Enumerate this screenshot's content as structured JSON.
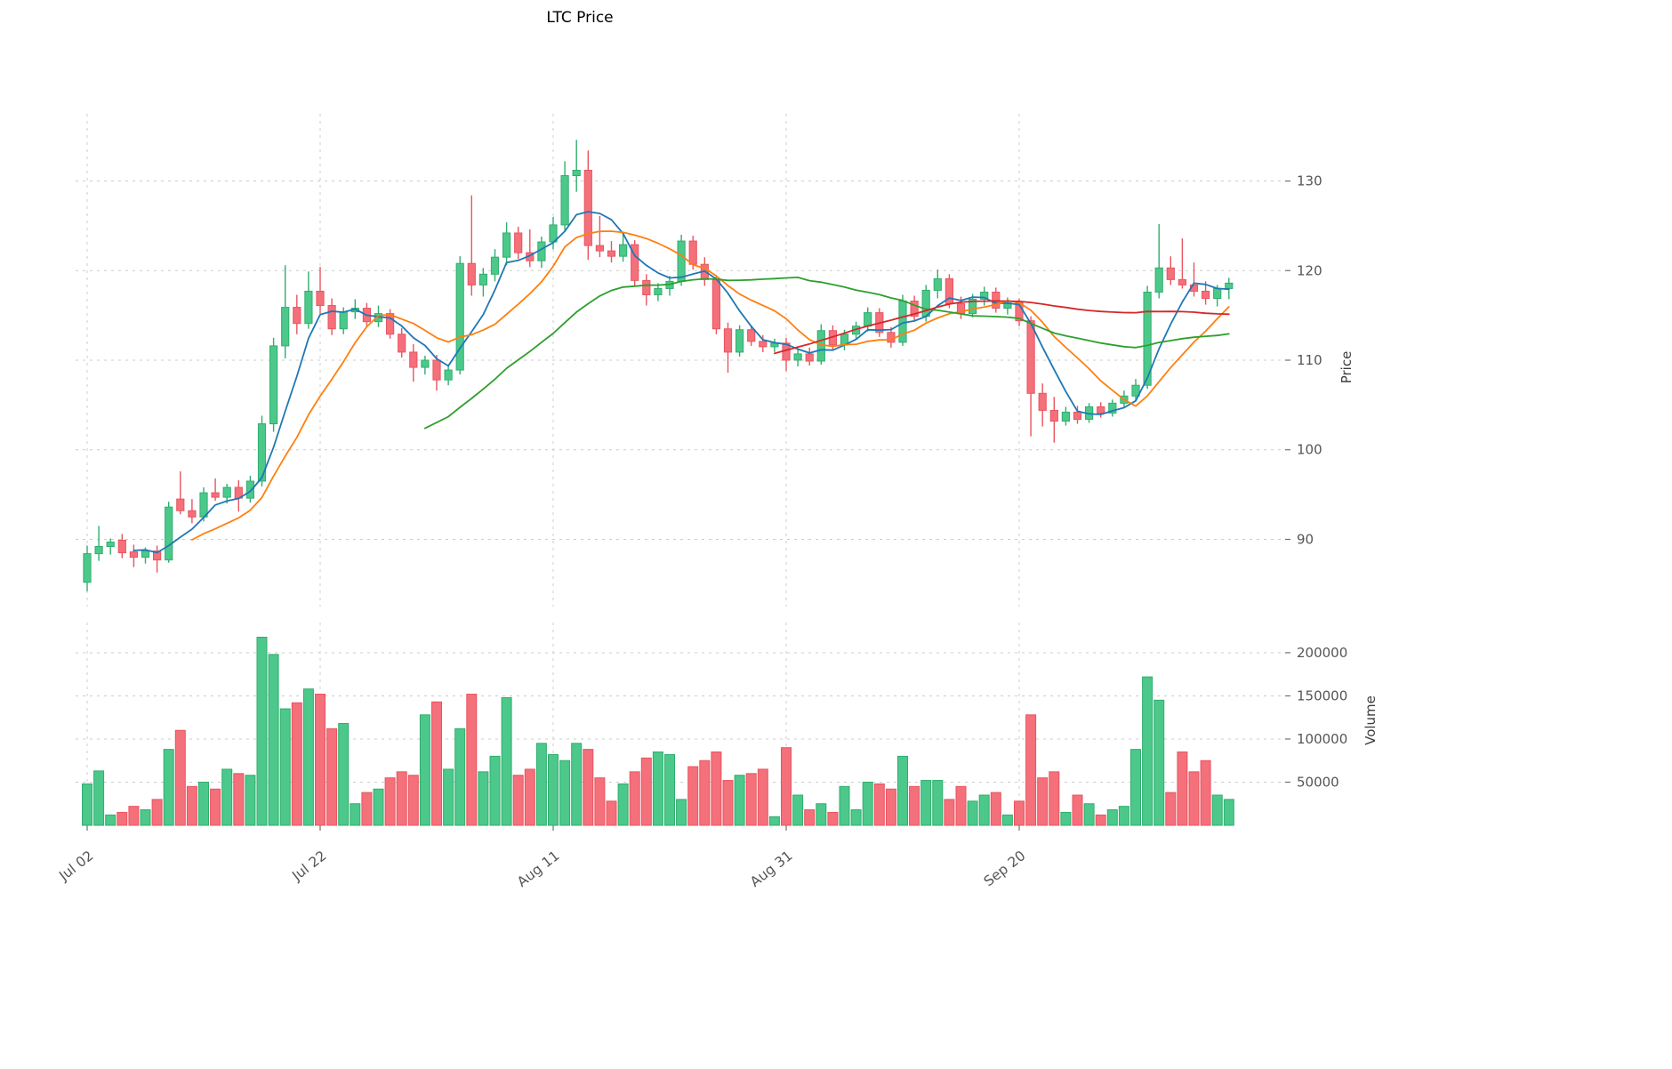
{
  "title": "LTC Price",
  "axes": {
    "price_axis_label": "Price",
    "volume_axis_label": "Volume",
    "price_ticks": [
      90,
      100,
      110,
      120,
      130
    ],
    "volume_ticks": [
      50000,
      100000,
      150000,
      200000
    ],
    "date_ticks": [
      {
        "index": 0,
        "label": "Jul 02"
      },
      {
        "index": 20,
        "label": "Jul 22"
      },
      {
        "index": 40,
        "label": "Aug 11"
      },
      {
        "index": 60,
        "label": "Aug 31"
      },
      {
        "index": 80,
        "label": "Sep 20"
      }
    ]
  },
  "style": {
    "up_color": "#4cc88b",
    "up_edge": "#2fae6e",
    "down_color": "#f4707b",
    "down_edge": "#e9545f",
    "grid_color": "#cccccc",
    "tick_color": "#707070",
    "tick_label_color": "#555555"
  },
  "chart_data": {
    "type": "candlestick",
    "title": "LTC Price",
    "ylabel": "Price",
    "ylabel_lower": "Volume",
    "price_ylim": [
      82.5,
      137.5
    ],
    "volume_ylim": [
      0,
      235000
    ],
    "grid": "dashed",
    "legend_position": "none",
    "moving_averages": [
      {
        "name": "MA5",
        "period": 5,
        "color": "#1f77b4"
      },
      {
        "name": "MA10",
        "period": 10,
        "color": "#ff7f0e"
      },
      {
        "name": "MA30",
        "period": 30,
        "color": "#2ca02c"
      },
      {
        "name": "MA60",
        "period": 60,
        "color": "#d62728"
      }
    ],
    "dates": [
      "Jul 02",
      "Jul 03",
      "Jul 04",
      "Jul 05",
      "Jul 06",
      "Jul 07",
      "Jul 08",
      "Jul 09",
      "Jul 10",
      "Jul 11",
      "Jul 12",
      "Jul 13",
      "Jul 14",
      "Jul 15",
      "Jul 16",
      "Jul 17",
      "Jul 18",
      "Jul 19",
      "Jul 20",
      "Jul 21",
      "Jul 22",
      "Jul 23",
      "Jul 24",
      "Jul 25",
      "Jul 26",
      "Jul 27",
      "Jul 28",
      "Jul 29",
      "Jul 30",
      "Jul 31",
      "Aug 01",
      "Aug 02",
      "Aug 03",
      "Aug 04",
      "Aug 05",
      "Aug 06",
      "Aug 07",
      "Aug 08",
      "Aug 09",
      "Aug 10",
      "Aug 11",
      "Aug 12",
      "Aug 13",
      "Aug 14",
      "Aug 15",
      "Aug 16",
      "Aug 17",
      "Aug 18",
      "Aug 19",
      "Aug 20",
      "Aug 21",
      "Aug 22",
      "Aug 23",
      "Aug 24",
      "Aug 25",
      "Aug 26",
      "Aug 27",
      "Aug 28",
      "Aug 29",
      "Aug 30",
      "Aug 31",
      "Sep 01",
      "Sep 02",
      "Sep 03",
      "Sep 04",
      "Sep 05",
      "Sep 06",
      "Sep 07",
      "Sep 08",
      "Sep 09",
      "Sep 10",
      "Sep 11",
      "Sep 12",
      "Sep 13",
      "Sep 14",
      "Sep 15",
      "Sep 16",
      "Sep 17",
      "Sep 18",
      "Sep 19",
      "Sep 20",
      "Sep 21",
      "Sep 22",
      "Sep 23",
      "Sep 24",
      "Sep 25",
      "Sep 26",
      "Sep 27",
      "Sep 28",
      "Sep 29",
      "Sep 30",
      "Oct 01",
      "Oct 02",
      "Oct 03",
      "Oct 04",
      "Oct 05",
      "Oct 06",
      "Oct 07",
      "Oct 08"
    ],
    "ohlc": [
      [
        85.2,
        89.3,
        84.2,
        88.4
      ],
      [
        88.4,
        91.5,
        87.6,
        89.2
      ],
      [
        89.2,
        90.1,
        88.3,
        89.7
      ],
      [
        89.9,
        90.6,
        87.9,
        88.5
      ],
      [
        88.6,
        89.4,
        86.9,
        88.0
      ],
      [
        88.0,
        89.1,
        87.3,
        88.7
      ],
      [
        88.7,
        89.3,
        86.3,
        87.7
      ],
      [
        87.7,
        94.2,
        87.4,
        93.6
      ],
      [
        94.5,
        97.6,
        92.8,
        93.2
      ],
      [
        93.2,
        94.5,
        91.8,
        92.5
      ],
      [
        92.5,
        95.8,
        92.0,
        95.2
      ],
      [
        95.2,
        96.8,
        94.3,
        94.7
      ],
      [
        94.7,
        96.2,
        94.0,
        95.8
      ],
      [
        95.8,
        96.6,
        93.1,
        94.6
      ],
      [
        94.6,
        97.1,
        94.1,
        96.5
      ],
      [
        96.5,
        103.8,
        95.9,
        102.9
      ],
      [
        102.9,
        112.5,
        102.0,
        111.6
      ],
      [
        111.6,
        120.6,
        110.2,
        115.9
      ],
      [
        115.9,
        117.3,
        112.9,
        114.1
      ],
      [
        114.1,
        119.9,
        113.5,
        117.7
      ],
      [
        117.7,
        120.4,
        115.2,
        116.1
      ],
      [
        116.1,
        116.9,
        112.8,
        113.5
      ],
      [
        113.5,
        115.9,
        112.9,
        115.4
      ],
      [
        115.4,
        116.8,
        114.6,
        115.8
      ],
      [
        115.8,
        116.4,
        113.8,
        114.3
      ],
      [
        114.3,
        116.1,
        113.7,
        115.2
      ],
      [
        115.2,
        115.7,
        112.4,
        112.9
      ],
      [
        112.9,
        113.6,
        110.3,
        110.9
      ],
      [
        110.9,
        111.8,
        107.6,
        109.2
      ],
      [
        109.2,
        110.5,
        108.4,
        110.0
      ],
      [
        110.0,
        110.6,
        106.6,
        107.8
      ],
      [
        107.8,
        109.4,
        107.2,
        108.9
      ],
      [
        108.9,
        121.6,
        108.4,
        120.8
      ],
      [
        120.8,
        128.4,
        117.2,
        118.4
      ],
      [
        118.4,
        120.3,
        117.1,
        119.6
      ],
      [
        119.6,
        122.4,
        118.8,
        121.5
      ],
      [
        121.5,
        125.4,
        120.6,
        124.2
      ],
      [
        124.2,
        124.9,
        121.3,
        122.0
      ],
      [
        122.0,
        124.6,
        120.4,
        121.1
      ],
      [
        121.1,
        123.8,
        120.3,
        123.2
      ],
      [
        123.2,
        126.0,
        122.4,
        125.1
      ],
      [
        125.1,
        132.2,
        124.4,
        130.6
      ],
      [
        130.6,
        134.6,
        128.8,
        131.2
      ],
      [
        131.2,
        133.4,
        121.2,
        122.8
      ],
      [
        122.8,
        126.1,
        121.5,
        122.2
      ],
      [
        122.2,
        123.3,
        120.9,
        121.6
      ],
      [
        121.6,
        124.1,
        121.0,
        122.9
      ],
      [
        122.9,
        123.4,
        118.2,
        118.9
      ],
      [
        118.9,
        119.6,
        116.1,
        117.3
      ],
      [
        117.3,
        118.6,
        116.6,
        118.0
      ],
      [
        118.0,
        119.4,
        117.2,
        118.8
      ],
      [
        118.8,
        124.0,
        118.3,
        123.3
      ],
      [
        123.3,
        123.9,
        120.1,
        120.7
      ],
      [
        120.7,
        121.5,
        118.3,
        119.0
      ],
      [
        119.0,
        119.5,
        112.9,
        113.5
      ],
      [
        113.5,
        114.2,
        108.6,
        110.9
      ],
      [
        110.9,
        113.9,
        110.4,
        113.4
      ],
      [
        113.4,
        113.9,
        111.6,
        112.1
      ],
      [
        112.1,
        112.8,
        110.9,
        111.5
      ],
      [
        111.5,
        112.4,
        110.9,
        111.9
      ],
      [
        111.9,
        112.5,
        108.8,
        110.0
      ],
      [
        110.0,
        111.2,
        109.3,
        110.7
      ],
      [
        110.7,
        111.4,
        109.4,
        109.9
      ],
      [
        109.9,
        114.0,
        109.5,
        113.3
      ],
      [
        113.3,
        113.9,
        111.2,
        111.7
      ],
      [
        111.7,
        113.4,
        111.1,
        112.9
      ],
      [
        112.9,
        114.3,
        112.3,
        113.8
      ],
      [
        113.8,
        115.9,
        113.2,
        115.3
      ],
      [
        115.3,
        115.8,
        112.6,
        113.1
      ],
      [
        113.1,
        113.7,
        111.4,
        112.0
      ],
      [
        112.0,
        117.3,
        111.6,
        116.6
      ],
      [
        116.6,
        117.2,
        114.4,
        114.9
      ],
      [
        114.9,
        118.4,
        114.3,
        117.8
      ],
      [
        117.8,
        120.1,
        116.9,
        119.1
      ],
      [
        119.1,
        119.6,
        115.8,
        116.3
      ],
      [
        116.3,
        117.1,
        114.6,
        115.2
      ],
      [
        115.2,
        117.4,
        114.8,
        116.8
      ],
      [
        116.8,
        118.2,
        116.1,
        117.6
      ],
      [
        117.6,
        118.1,
        115.3,
        115.8
      ],
      [
        115.8,
        117.0,
        115.1,
        116.4
      ],
      [
        116.4,
        116.9,
        113.8,
        114.4
      ],
      [
        114.4,
        114.9,
        101.5,
        106.3
      ],
      [
        106.3,
        107.4,
        102.6,
        104.4
      ],
      [
        104.4,
        105.9,
        100.8,
        103.2
      ],
      [
        103.2,
        104.8,
        102.7,
        104.2
      ],
      [
        104.2,
        104.9,
        102.9,
        103.4
      ],
      [
        103.4,
        105.2,
        103.0,
        104.8
      ],
      [
        104.8,
        105.3,
        103.6,
        104.1
      ],
      [
        104.1,
        105.6,
        103.7,
        105.2
      ],
      [
        105.2,
        106.6,
        104.7,
        106.0
      ],
      [
        106.0,
        107.9,
        105.4,
        107.2
      ],
      [
        107.2,
        118.3,
        106.8,
        117.6
      ],
      [
        117.6,
        125.2,
        116.9,
        120.3
      ],
      [
        120.3,
        121.6,
        118.4,
        119.0
      ],
      [
        119.0,
        123.6,
        118.0,
        118.4
      ],
      [
        118.4,
        120.9,
        117.1,
        117.7
      ],
      [
        117.7,
        118.8,
        116.2,
        116.9
      ],
      [
        116.9,
        118.4,
        116.0,
        118.0
      ],
      [
        118.0,
        119.2,
        116.8,
        118.6
      ]
    ],
    "volume": [
      48000,
      63000,
      12000,
      15000,
      22000,
      18000,
      30000,
      88000,
      110000,
      45000,
      50000,
      42000,
      65000,
      60000,
      58000,
      218000,
      198000,
      135000,
      142000,
      158000,
      152000,
      112000,
      118000,
      25000,
      38000,
      42000,
      55000,
      62000,
      58000,
      128000,
      143000,
      65000,
      112000,
      152000,
      62000,
      80000,
      148000,
      58000,
      65000,
      95000,
      82000,
      75000,
      95000,
      88000,
      55000,
      28000,
      48000,
      62000,
      78000,
      85000,
      82000,
      30000,
      68000,
      75000,
      85000,
      52000,
      58000,
      60000,
      65000,
      10000,
      90000,
      35000,
      18000,
      25000,
      15000,
      45000,
      18000,
      50000,
      48000,
      42000,
      80000,
      45000,
      52000,
      52000,
      30000,
      45000,
      28000,
      35000,
      38000,
      12000,
      28000,
      128000,
      55000,
      62000,
      15000,
      35000,
      25000,
      12000,
      18000,
      22000,
      88000,
      172000,
      145000,
      38000,
      85000,
      62000,
      75000,
      35000,
      30000
    ]
  }
}
